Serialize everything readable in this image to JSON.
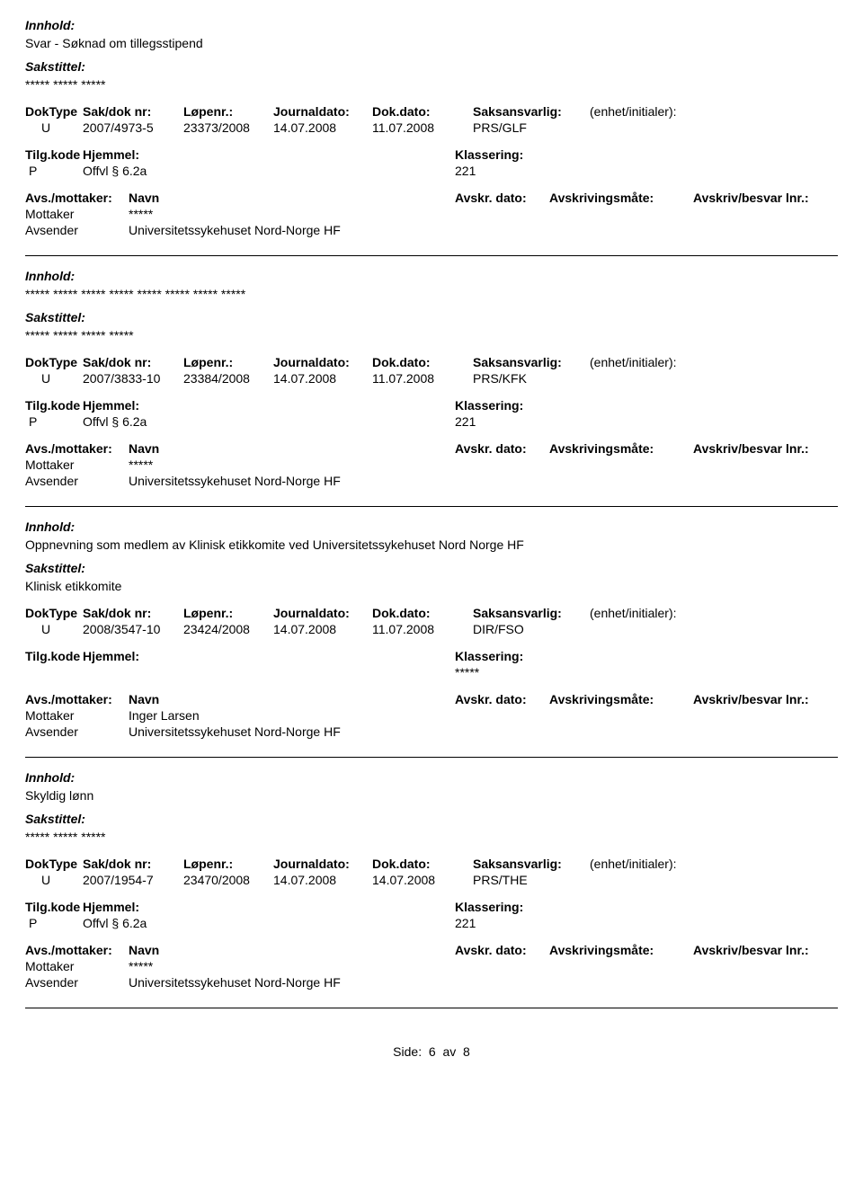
{
  "labels": {
    "innhold": "Innhold:",
    "sakstittel": "Sakstittel:",
    "doktype": "DokType",
    "sakdok": "Sak/dok nr:",
    "lopenr": "Løpenr.:",
    "journaldato": "Journaldato:",
    "dokdato": "Dok.dato:",
    "saksansvarlig": "Saksansvarlig:",
    "enhet": "(enhet/initialer):",
    "tilgkode": "Tilg.kode",
    "hjemmel": "Hjemmel:",
    "klassering": "Klassering:",
    "avsmottaker": "Avs./mottaker:",
    "navn": "Navn",
    "avskrdato": "Avskr. dato:",
    "avskrivingsmate": "Avskrivingsmåte:",
    "avskrivbesvar": "Avskriv/besvar lnr.:",
    "mottaker": "Mottaker",
    "avsender": "Avsender"
  },
  "entries": [
    {
      "innhold": "Svar - Søknad om tillegsstipend",
      "sakstittel": "***** ***** *****",
      "doktype": "U",
      "sakdok": "2007/4973-5",
      "lopenr": "23373/2008",
      "journaldato": "14.07.2008",
      "dokdato": "11.07.2008",
      "saksansvarlig": "PRS/GLF",
      "tilgkode": "P",
      "hjemmel": "Offvl § 6.2a",
      "klassering": "221",
      "mottaker_name": "*****",
      "avsender_name": "Universitetssykehuset Nord-Norge HF"
    },
    {
      "innhold": "***** ***** ***** ***** ***** ***** ***** *****",
      "sakstittel": "***** ***** ***** *****",
      "doktype": "U",
      "sakdok": "2007/3833-10",
      "lopenr": "23384/2008",
      "journaldato": "14.07.2008",
      "dokdato": "11.07.2008",
      "saksansvarlig": "PRS/KFK",
      "tilgkode": "P",
      "hjemmel": "Offvl § 6.2a",
      "klassering": "221",
      "mottaker_name": "*****",
      "avsender_name": "Universitetssykehuset Nord-Norge HF"
    },
    {
      "innhold": "Oppnevning som medlem av Klinisk etikkomite ved Universitetssykehuset Nord Norge HF",
      "sakstittel": "Klinisk etikkomite",
      "doktype": "U",
      "sakdok": "2008/3547-10",
      "lopenr": "23424/2008",
      "journaldato": "14.07.2008",
      "dokdato": "11.07.2008",
      "saksansvarlig": "DIR/FSO",
      "tilgkode": "",
      "hjemmel": "",
      "klassering": "*****",
      "mottaker_name": "Inger Larsen",
      "avsender_name": "Universitetssykehuset Nord-Norge HF"
    },
    {
      "innhold": "Skyldig lønn",
      "sakstittel": "***** ***** *****",
      "doktype": "U",
      "sakdok": "2007/1954-7",
      "lopenr": "23470/2008",
      "journaldato": "14.07.2008",
      "dokdato": "14.07.2008",
      "saksansvarlig": "PRS/THE",
      "tilgkode": "P",
      "hjemmel": "Offvl § 6.2a",
      "klassering": "221",
      "mottaker_name": "*****",
      "avsender_name": "Universitetssykehuset Nord-Norge HF"
    }
  ],
  "footer": {
    "side_label": "Side:",
    "page": "6",
    "av": "av",
    "total": "8"
  }
}
